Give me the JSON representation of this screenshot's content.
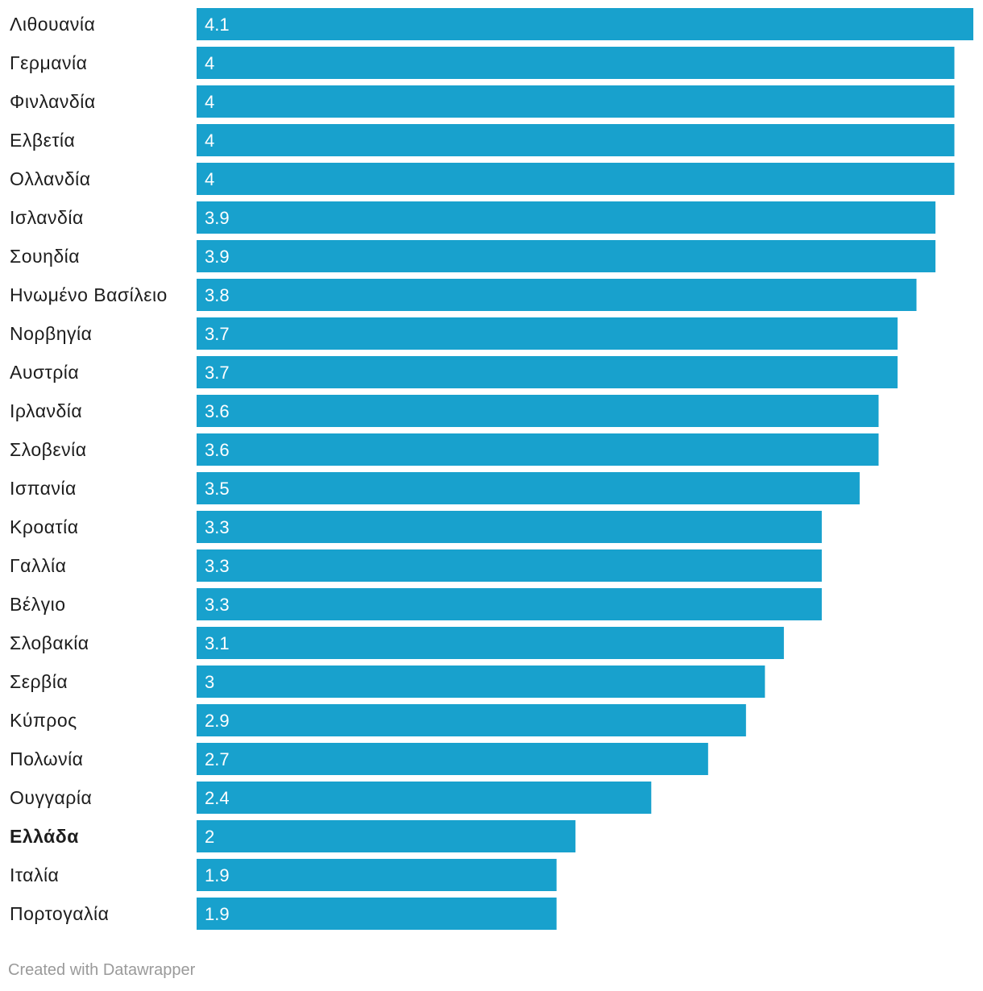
{
  "chart_data": {
    "type": "bar",
    "orientation": "horizontal",
    "categories": [
      "Λιθουανία",
      "Γερμανία",
      "Φινλανδία",
      "Ελβετία",
      "Ολλανδία",
      "Ισλανδία",
      "Σουηδία",
      "Ηνωμένο Βασίλειο",
      "Νορβηγία",
      "Αυστρία",
      "Ιρλανδία",
      "Σλοβενία",
      "Ισπανία",
      "Κροατία",
      "Γαλλία",
      "Βέλγιο",
      "Σλοβακία",
      "Σερβία",
      "Κύπρος",
      "Πολωνία",
      "Ουγγαρία",
      "Ελλάδα",
      "Ιταλία",
      "Πορτογαλία"
    ],
    "values": [
      4.1,
      4,
      4,
      4,
      4,
      3.9,
      3.9,
      3.8,
      3.7,
      3.7,
      3.6,
      3.6,
      3.5,
      3.3,
      3.3,
      3.3,
      3.1,
      3,
      2.9,
      2.7,
      2.4,
      2,
      1.9,
      1.9
    ],
    "highlighted_category": "Ελλάδα",
    "xlim": [
      0,
      4.1
    ],
    "bar_color": "#18a1cd",
    "value_label_color": "#ffffff",
    "show_value_labels": true,
    "title": "",
    "xlabel": "",
    "ylabel": ""
  },
  "footer": {
    "credit": "Created with Datawrapper"
  }
}
